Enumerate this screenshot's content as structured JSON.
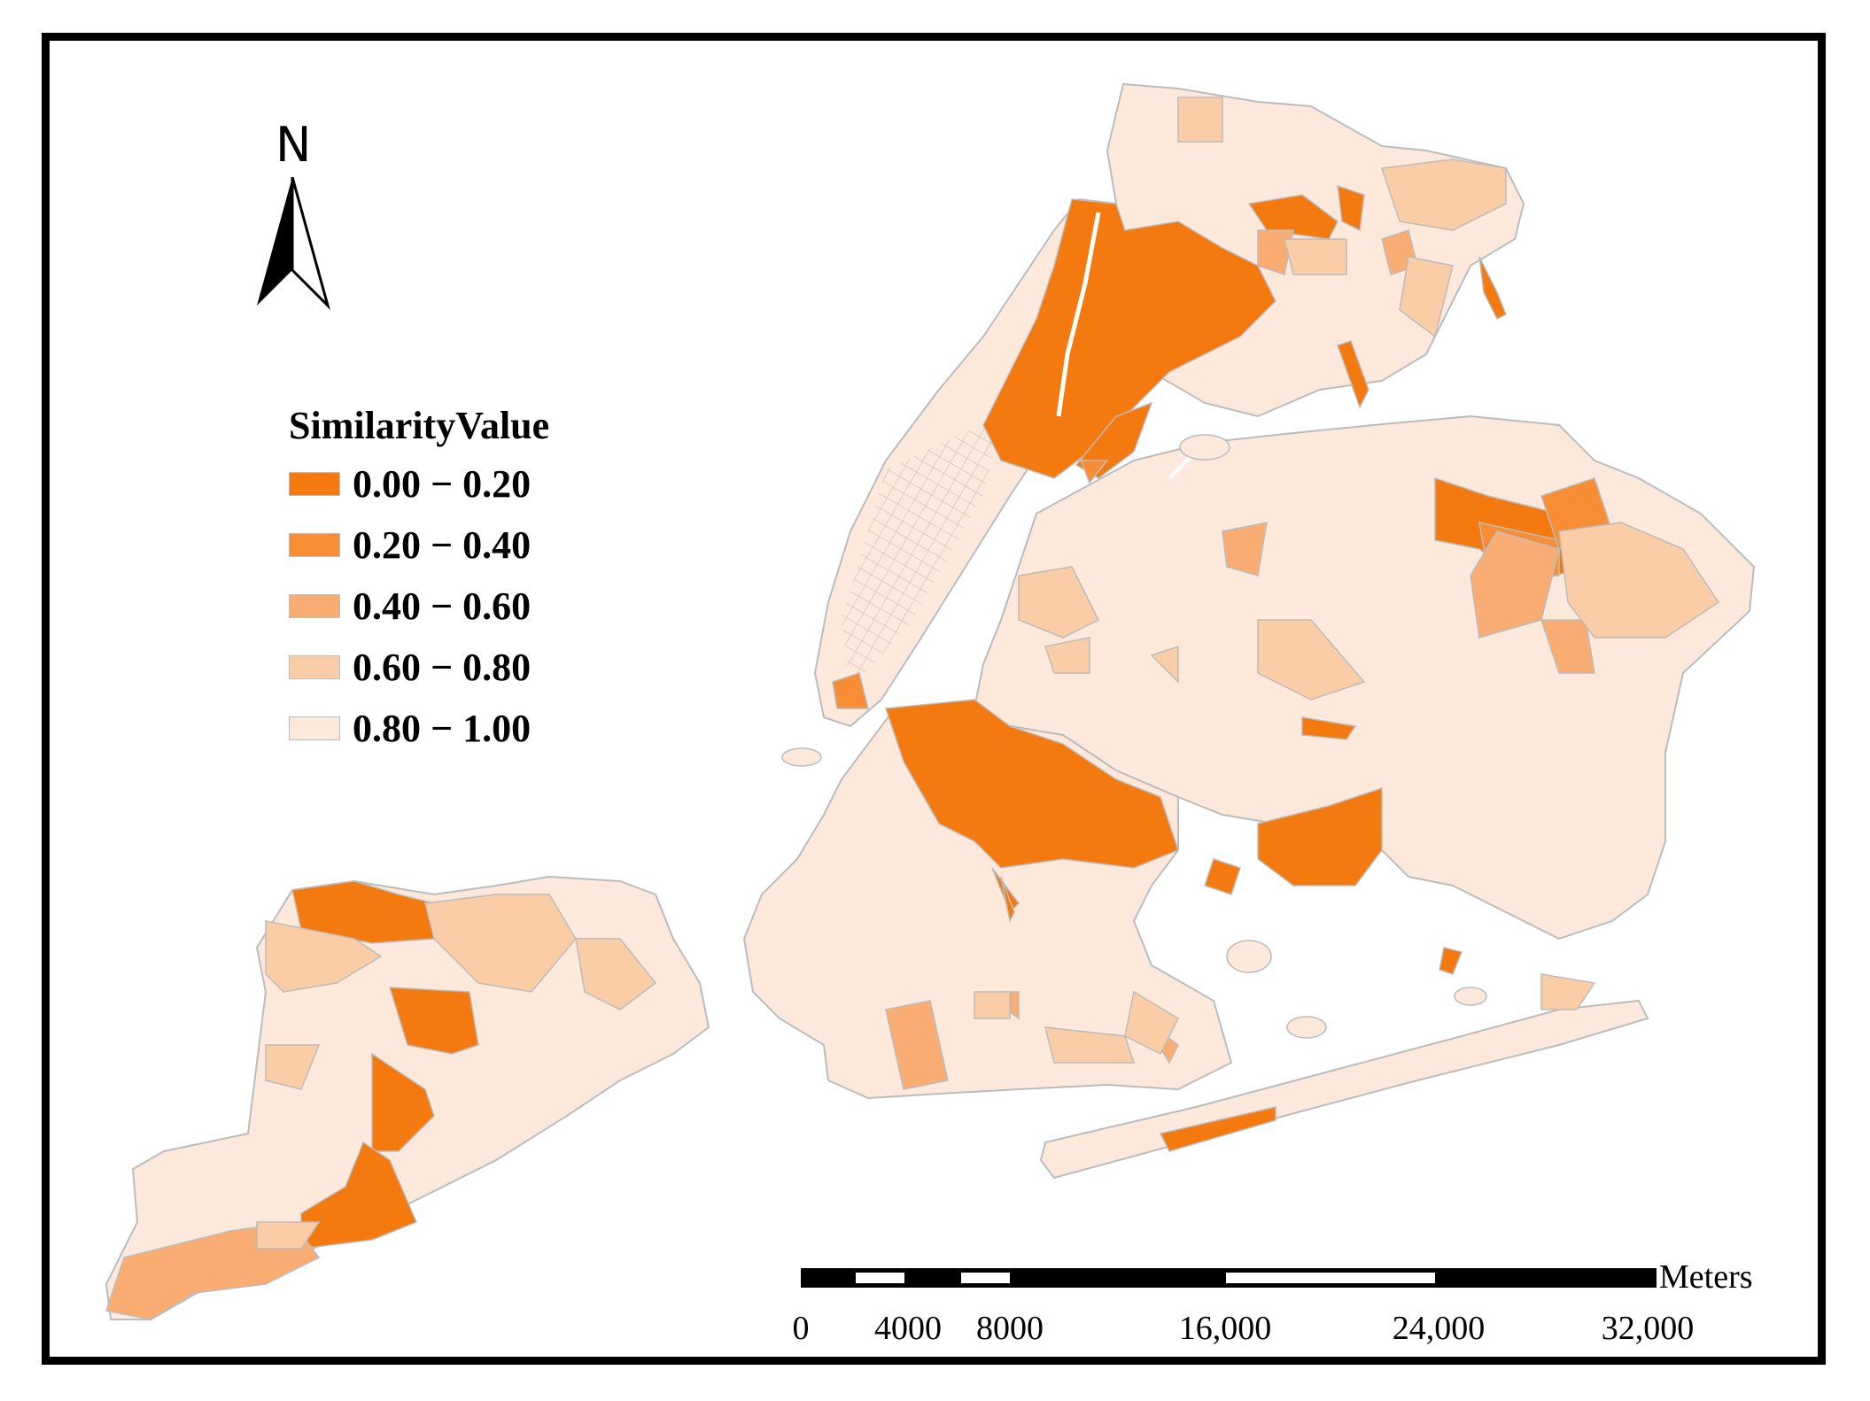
{
  "north": {
    "label": "N"
  },
  "legend": {
    "title": "SimilarityValue",
    "items": [
      {
        "label": "0.00 − 0.20",
        "color": "#f47a10"
      },
      {
        "label": "0.20 − 0.40",
        "color": "#f78d34"
      },
      {
        "label": "0.40 − 0.60",
        "color": "#f9ad72"
      },
      {
        "label": "0.60 − 0.80",
        "color": "#fbcda6"
      },
      {
        "label": "0.80 − 1.00",
        "color": "#fde9dc"
      }
    ]
  },
  "scale_bar": {
    "unit": "Meters",
    "ticks": [
      "0",
      "4000",
      "8000",
      "16,000",
      "24,000",
      "32,000"
    ]
  },
  "colors": {
    "boundary": "#bcbcbc",
    "frame": "#000000",
    "water": "#ffffff"
  }
}
